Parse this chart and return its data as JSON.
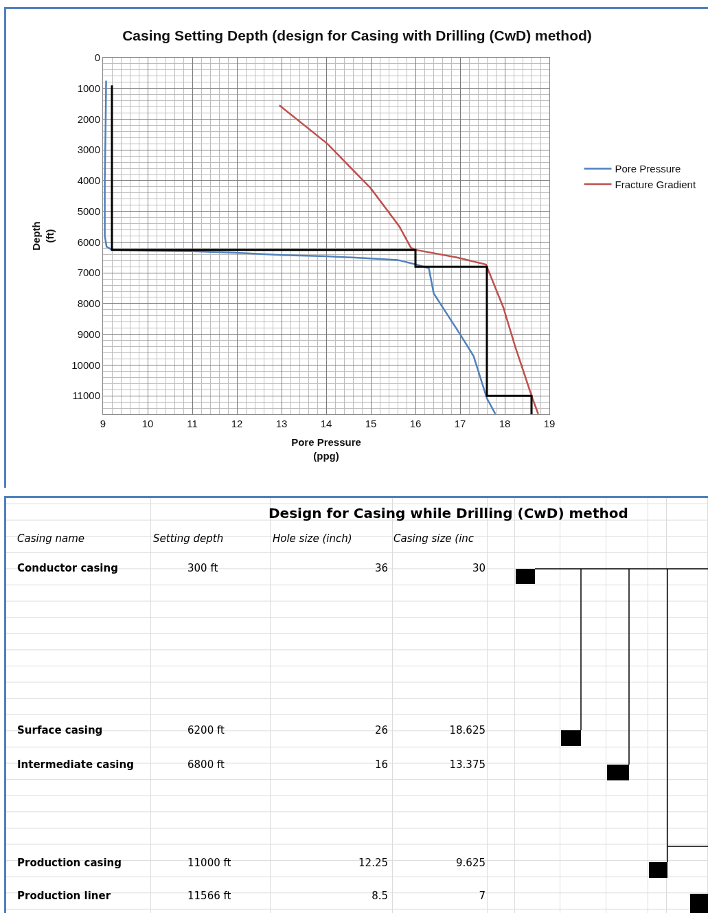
{
  "chart_data": [
    {
      "type": "line",
      "title": "Casing Setting Depth (design for Casing with Drilling (CwD) method)",
      "xlabel": "Pore Pressure (ppg)",
      "ylabel": "Depth (ft)",
      "xlim": [
        9,
        19
      ],
      "xticks": [
        9,
        10,
        11,
        12,
        13,
        14,
        15,
        16,
        17,
        18,
        19
      ],
      "ylim": [
        11600,
        0
      ],
      "yticks": [
        0,
        1000,
        2000,
        3000,
        4000,
        5000,
        6000,
        7000,
        8000,
        9000,
        10000,
        11000
      ],
      "grid": true,
      "legend": "right",
      "marker": "none",
      "line_style": "solid",
      "series": [
        {
          "name": "Pore Pressure",
          "color": "#4f81bd",
          "x": [
            9.07,
            9.06,
            9.04,
            9.04,
            9.08,
            9.2,
            10,
            11,
            12,
            13,
            14,
            15,
            15.6,
            16,
            16.3,
            16.41,
            16.6,
            17,
            17.3,
            17.6,
            17.79
          ],
          "values": [
            750,
            2000,
            4000,
            5800,
            6150,
            6250,
            6280,
            6300,
            6350,
            6420,
            6460,
            6530,
            6580,
            6720,
            6850,
            7670,
            8100,
            9000,
            9700,
            11080,
            11590
          ]
        },
        {
          "name": "Fracture Gradient",
          "color": "#c0504d",
          "x": [
            12.95,
            14.02,
            15.0,
            15.64,
            15.9,
            16.0,
            16.93,
            17.58,
            17.97,
            18.23,
            18.62,
            18.75
          ],
          "values": [
            1550,
            2790,
            4250,
            5490,
            6190,
            6250,
            6500,
            6730,
            8130,
            9380,
            11080,
            11590
          ]
        },
        {
          "color": "#000000",
          "x": [
            9.2,
            9.2,
            16,
            16,
            17.6,
            17.6,
            18.6,
            18.6
          ],
          "values": [
            900,
            6250,
            6250,
            6800,
            6800,
            11000,
            11000,
            11600
          ]
        }
      ]
    },
    {
      "type": "other",
      "title": "Design for Casing while Drilling (CwD) method",
      "annotations": [
        "Casing name",
        "Setting depth",
        "Hole size (inch)",
        "Casing size (inc",
        "Conductor casing",
        "300 ft",
        "36",
        "30",
        "Surface casing",
        "6200 ft",
        "26",
        "18.625",
        "Intermediate casing",
        "6800 ft",
        "16",
        "13.375",
        "Production casing",
        "11000 ft",
        "12.25",
        "9.625",
        "Production liner",
        "11566 ft",
        "8.5",
        "7"
      ]
    }
  ]
}
